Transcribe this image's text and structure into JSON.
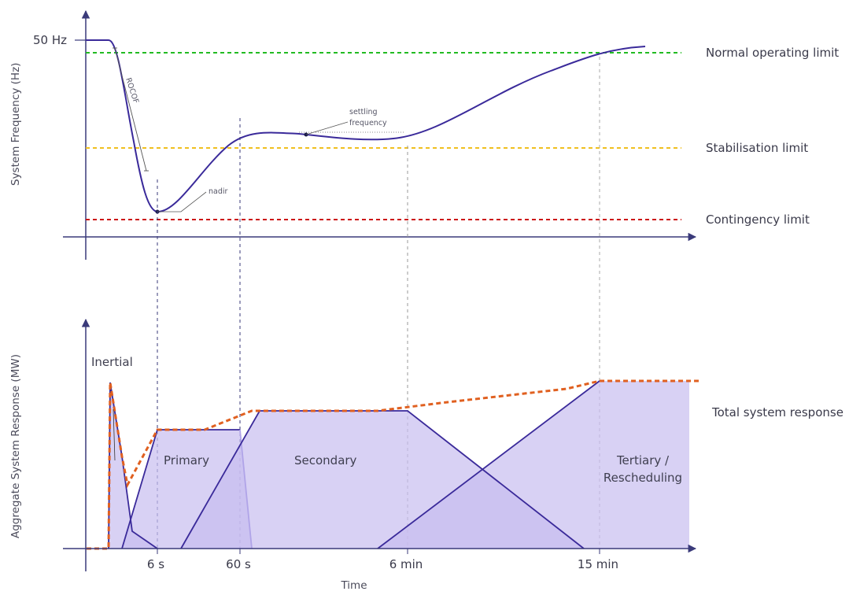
{
  "top_panel": {
    "y_axis_title": "System Frequency (Hz)",
    "y_start_label": "50 Hz",
    "annotations": {
      "rocof": "ROCOF",
      "nadir": "nadir",
      "settling_line1": "settling",
      "settling_line2": "frequency"
    },
    "limits": [
      {
        "label": "Normal operating limit",
        "color": "#22bb22"
      },
      {
        "label": "Stabilisation limit",
        "color": "#f0c020"
      },
      {
        "label": "Contingency limit",
        "color": "#cc1111"
      }
    ],
    "curve_color": "#3a2a9a"
  },
  "bottom_panel": {
    "y_axis_title": "Aggregate System Response (MW)",
    "x_axis_title": "Time",
    "time_ticks": [
      "6 s",
      "60 s",
      "6 min",
      "15 min"
    ],
    "regions": {
      "inertial": "Inertial",
      "primary": "Primary",
      "secondary": "Secondary",
      "tertiary_line1": "Tertiary /",
      "tertiary_line2": "Rescheduling"
    },
    "total_label": "Total system response",
    "fill_color": "#c8bdf0",
    "line_color": "#3a2a9a",
    "total_color": "#e06020"
  }
}
